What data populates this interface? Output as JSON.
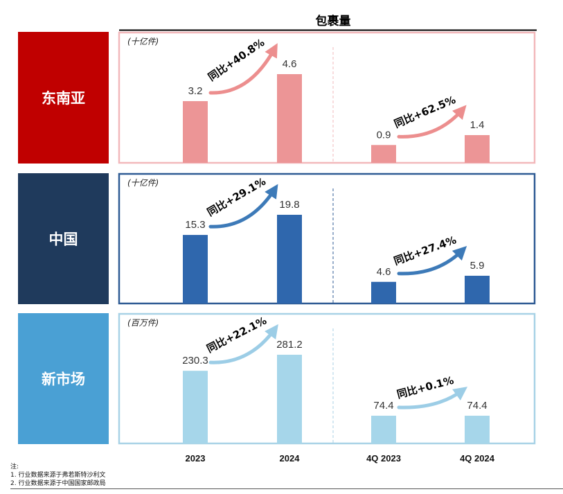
{
  "header": {
    "title": "包裹量"
  },
  "colors": {
    "southeast_asia": {
      "label_bg": "#c00000",
      "frame": "#f2b8bb",
      "bar": "#ec9596",
      "arrow": "#ec8e8e"
    },
    "china": {
      "label_bg": "#1f3a5c",
      "frame": "#2f5b94",
      "bar": "#2f67ad",
      "arrow": "#3d7ab8"
    },
    "new_markets": {
      "label_bg": "#4aa0d4",
      "frame": "#a8d2e6",
      "bar": "#a6d6ea",
      "arrow": "#9ccde6"
    }
  },
  "x_categories": [
    "2023",
    "2024",
    "4Q 2023",
    "4Q 2024"
  ],
  "chart_data": [
    {
      "type": "bar",
      "name": "东南亚",
      "unit": "(十亿件)",
      "annual": {
        "categories": [
          "2023",
          "2024"
        ],
        "values": [
          3.2,
          4.6
        ],
        "labels": [
          "3.2",
          "4.6"
        ],
        "growth": "同比+40.8%"
      },
      "quarterly": {
        "categories": [
          "4Q 2023",
          "4Q 2024"
        ],
        "values": [
          0.9,
          1.4
        ],
        "labels": [
          "0.9",
          "1.4"
        ],
        "growth": "同比+62.5%"
      }
    },
    {
      "type": "bar",
      "name": "中国",
      "unit": "(十亿件)",
      "annual": {
        "categories": [
          "2023",
          "2024"
        ],
        "values": [
          15.3,
          19.8
        ],
        "labels": [
          "15.3",
          "19.8"
        ],
        "growth": "同比+29.1%"
      },
      "quarterly": {
        "categories": [
          "4Q 2023",
          "4Q 2024"
        ],
        "values": [
          4.6,
          5.9
        ],
        "labels": [
          "4.6",
          "5.9"
        ],
        "growth": "同比+27.4%"
      }
    },
    {
      "type": "bar",
      "name": "新市场",
      "unit": "(百万件)",
      "annual": {
        "categories": [
          "2023",
          "2024"
        ],
        "values": [
          230.3,
          281.2
        ],
        "labels": [
          "230.3",
          "281.2"
        ],
        "growth": "同比+22.1%"
      },
      "quarterly": {
        "categories": [
          "4Q 2023",
          "4Q 2024"
        ],
        "values": [
          74.4,
          74.4
        ],
        "labels": [
          "74.4",
          "74.4"
        ],
        "growth": "同比+0.1%"
      }
    }
  ],
  "notes": {
    "heading": "注:",
    "items": [
      "1. 行业数据来源于弗若斯特沙利文",
      "2. 行业数据来源于中国国家邮政局"
    ]
  }
}
